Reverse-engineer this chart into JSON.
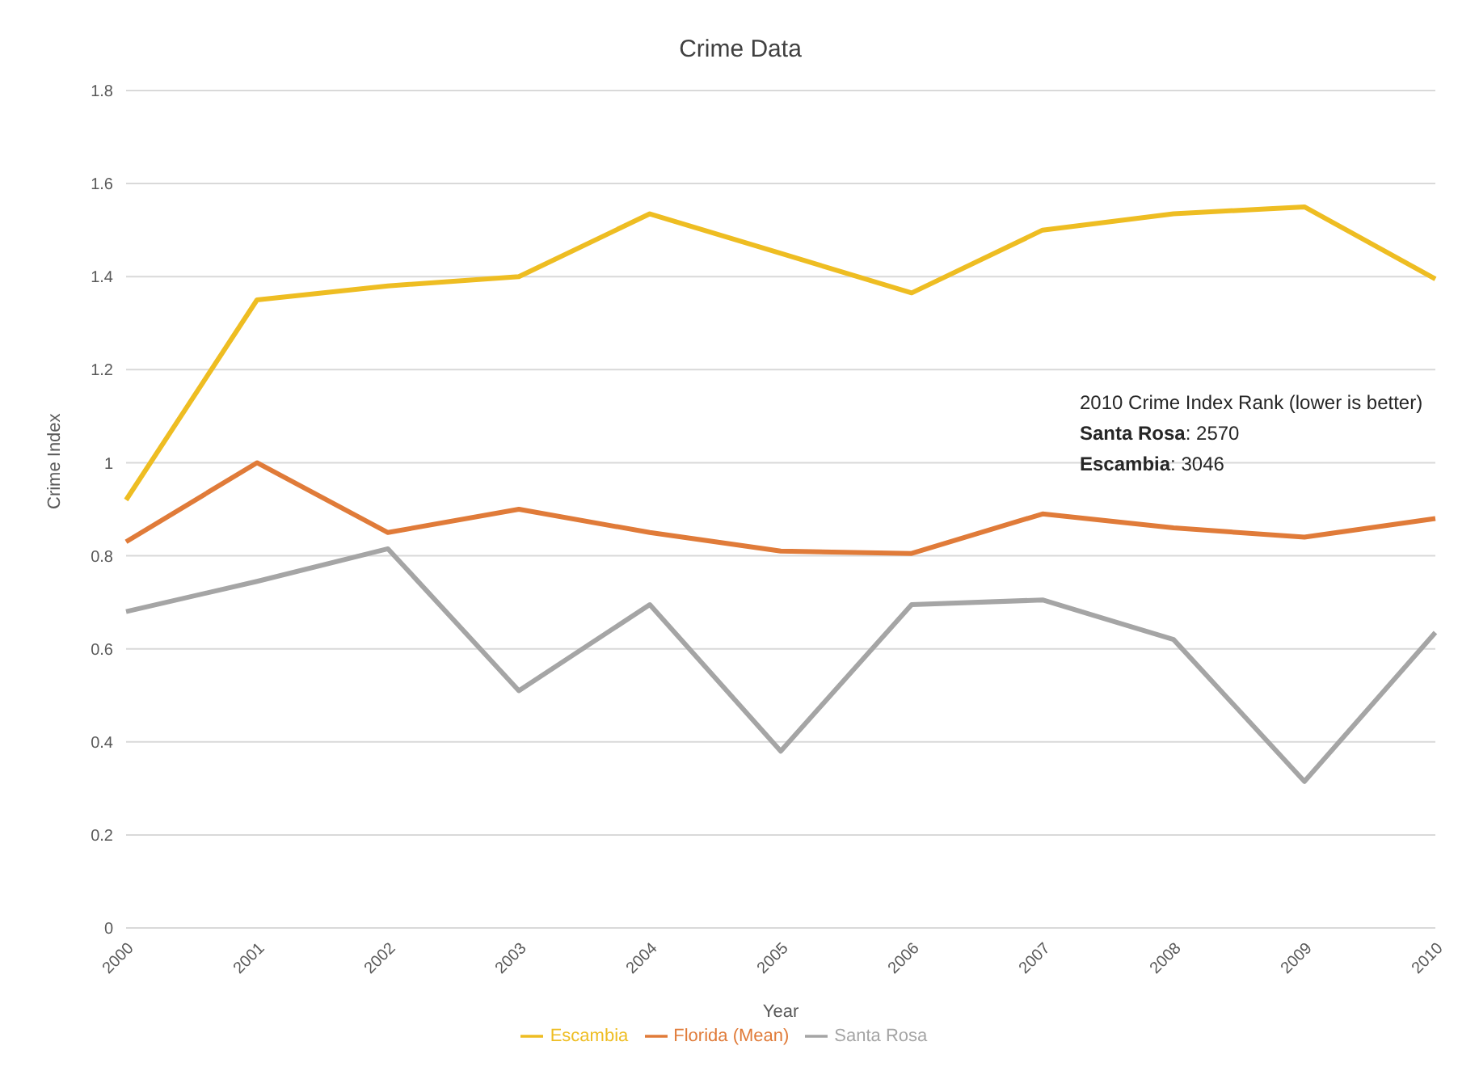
{
  "chart_data": {
    "type": "line",
    "title": "Crime Data",
    "xlabel": "Year",
    "ylabel": "Crime Index",
    "categories": [
      "2000",
      "2001",
      "2002",
      "2003",
      "2004",
      "2005",
      "2006",
      "2007",
      "2008",
      "2009",
      "2010"
    ],
    "series": [
      {
        "name": "Florida (Mean)",
        "color": "#e07b39",
        "values": [
          0.83,
          1.0,
          0.85,
          0.9,
          0.85,
          0.81,
          0.805,
          0.89,
          0.86,
          0.84,
          0.88
        ]
      },
      {
        "name": "Santa Rosa",
        "color": "#a5a5a5",
        "values": [
          0.68,
          0.745,
          0.815,
          0.51,
          0.695,
          0.38,
          0.695,
          0.705,
          0.62,
          0.315,
          0.635
        ]
      },
      {
        "name": "Escambia",
        "color": "#eebd22",
        "values": [
          0.92,
          1.35,
          1.38,
          1.4,
          1.535,
          1.45,
          1.365,
          1.5,
          1.535,
          1.55,
          1.395
        ]
      }
    ],
    "ylim": [
      0,
      1.8
    ],
    "yticks": [
      0,
      0.2,
      0.4,
      0.6,
      0.8,
      1,
      1.2,
      1.4,
      1.6,
      1.8
    ],
    "grid": "y",
    "legend": "bottom",
    "marker": "none",
    "line_style": "solid",
    "annotations": [
      "2010 Crime Index Rank (lower is better)",
      "Santa Rosa: 2570",
      "Escambia: 3046"
    ]
  }
}
